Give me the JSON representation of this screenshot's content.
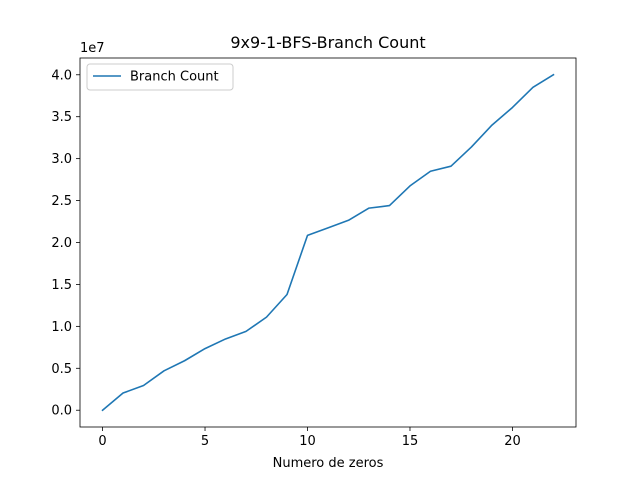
{
  "chart_data": {
    "type": "line",
    "title": "9x9-1-BFS-Branch Count",
    "xlabel": "Numero de zeros",
    "ylabel": "",
    "y_offset_label": "1e7",
    "y_scale": 10000000,
    "xlim": [
      -1.1,
      23.1
    ],
    "ylim": [
      -2000000,
      42000000
    ],
    "x_ticks": [
      0,
      5,
      10,
      15,
      20
    ],
    "y_ticks": [
      0,
      5000000,
      10000000,
      15000000,
      20000000,
      25000000,
      30000000,
      35000000,
      40000000
    ],
    "y_tick_labels": [
      "0.0",
      "0.5",
      "1.0",
      "1.5",
      "2.0",
      "2.5",
      "3.0",
      "3.5",
      "4.0"
    ],
    "grid": false,
    "legend_position": "upper-left",
    "series": [
      {
        "name": "Branch Count",
        "color": "#1f77b4",
        "x": [
          0,
          1,
          2,
          3,
          4,
          5,
          6,
          7,
          8,
          9,
          10,
          11,
          12,
          13,
          14,
          15,
          16,
          17,
          18,
          19,
          20,
          21,
          22
        ],
        "values": [
          0,
          2050000,
          2950000,
          4700000,
          5900000,
          7350000,
          8500000,
          9400000,
          11100000,
          13800000,
          20850000,
          21750000,
          22650000,
          24100000,
          24400000,
          26750000,
          28500000,
          29100000,
          31400000,
          34000000,
          36100000,
          38500000,
          40000000
        ]
      }
    ]
  }
}
